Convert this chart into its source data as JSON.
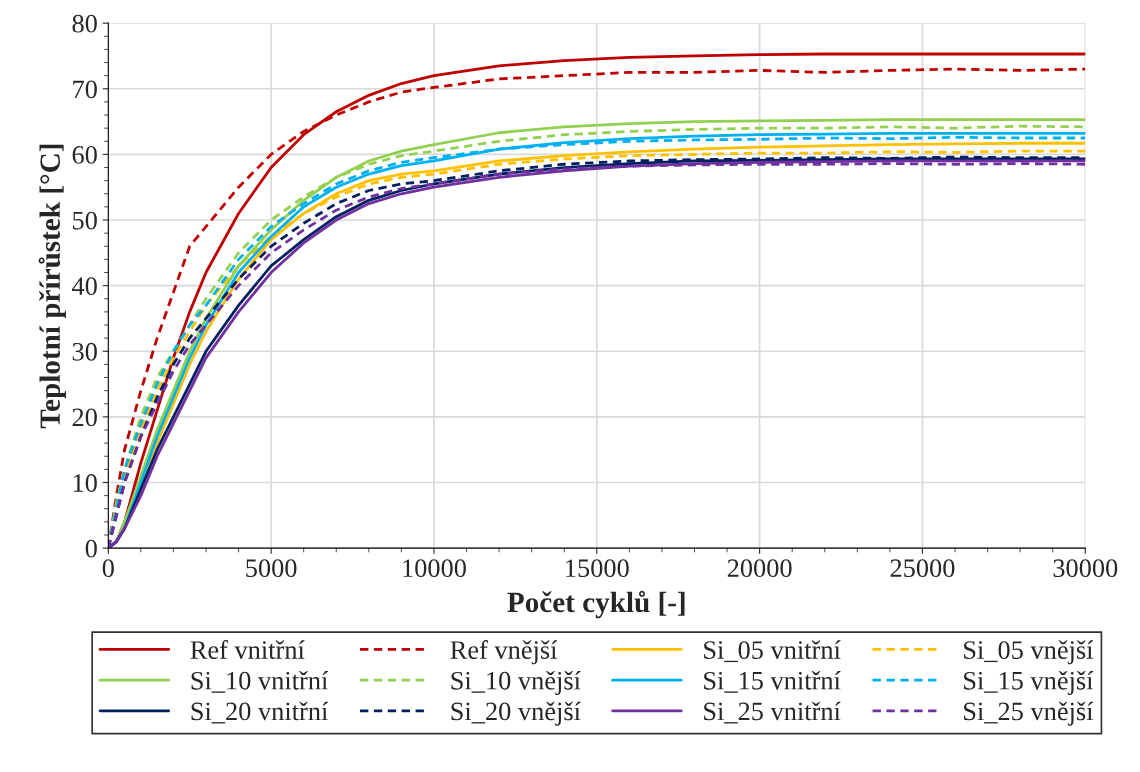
{
  "chart_data": {
    "type": "line",
    "xlabel": "Počet cyklů [-]",
    "ylabel": "Teplotní přírůstek [°C]",
    "x": [
      0,
      250,
      500,
      1000,
      1500,
      2000,
      2500,
      3000,
      4000,
      5000,
      6000,
      7000,
      8000,
      9000,
      10000,
      12000,
      14000,
      16000,
      18000,
      20000,
      22000,
      24000,
      26000,
      28000,
      30000
    ],
    "xlim": [
      0,
      30000
    ],
    "xticks": [
      0,
      5000,
      10000,
      15000,
      20000,
      25000,
      30000
    ],
    "ylim": [
      0,
      80
    ],
    "yticks": [
      0,
      10,
      20,
      30,
      40,
      50,
      60,
      70,
      80
    ],
    "grid": true,
    "legend": "bottom",
    "series": [
      {
        "name": "Ref vnitřní",
        "color": "#c00000",
        "line_style": "solid",
        "values": [
          0,
          1,
          4,
          13,
          21,
          29,
          36,
          42,
          51,
          58,
          63,
          66.5,
          69,
          70.8,
          72,
          73.5,
          74.3,
          74.8,
          75,
          75.2,
          75.3,
          75.3,
          75.3,
          75.3,
          75.3
        ]
      },
      {
        "name": "Ref vnější",
        "color": "#c00000",
        "line_style": "dashed",
        "values": [
          0,
          8,
          15,
          24,
          32,
          39,
          46,
          49,
          55,
          60,
          63.5,
          66,
          68,
          69.5,
          70.2,
          71.5,
          72,
          72.5,
          72.5,
          72.8,
          72.5,
          72.8,
          73,
          72.8,
          73
        ]
      },
      {
        "name": "Si_05 vnitřní",
        "color": "#ffc000",
        "line_style": "solid",
        "values": [
          null,
          null,
          3,
          9,
          16,
          22,
          28,
          33,
          41,
          47,
          51,
          54,
          56,
          57,
          57.5,
          59,
          59.8,
          60.4,
          60.8,
          61.1,
          61.3,
          61.5,
          61.6,
          61.7,
          61.7
        ]
      },
      {
        "name": "Si_05 vnější",
        "color": "#ffc000",
        "line_style": "dashed",
        "values": [
          0,
          6,
          11,
          18,
          24,
          29,
          33,
          37,
          43,
          47.5,
          51,
          53.5,
          55.5,
          56.5,
          57,
          58.5,
          59.3,
          59.8,
          60,
          60.2,
          60.2,
          60.4,
          60.3,
          60.5,
          60.5
        ]
      },
      {
        "name": "Si_10 vnitřní",
        "color": "#92d050",
        "line_style": "solid",
        "values": [
          0,
          1,
          4,
          11,
          18,
          24,
          30,
          35,
          43,
          48.5,
          53,
          56.5,
          59,
          60.5,
          61.5,
          63.3,
          64.2,
          64.7,
          65,
          65.1,
          65.2,
          65.3,
          65.3,
          65.3,
          65.3
        ]
      },
      {
        "name": "Si_10 vnější",
        "color": "#92d050",
        "line_style": "dashed",
        "values": [
          0,
          7,
          12,
          20,
          26,
          30,
          34,
          38,
          45,
          50,
          53.5,
          56.5,
          58.5,
          59.8,
          60.5,
          62,
          63,
          63.5,
          63.8,
          64,
          64,
          64.2,
          64,
          64.3,
          64.2
        ]
      },
      {
        "name": "Si_15 vnitřní",
        "color": "#00b0f0",
        "line_style": "solid",
        "values": [
          0,
          1,
          3,
          10,
          17,
          23,
          29,
          34,
          42,
          47.5,
          52,
          55,
          57,
          58.3,
          59,
          60.8,
          61.8,
          62.4,
          62.8,
          63,
          63.1,
          63.2,
          63.2,
          63.2,
          63.2
        ]
      },
      {
        "name": "Si_15 vnější",
        "color": "#00b0f0",
        "line_style": "dashed",
        "values": [
          0,
          6,
          12,
          19,
          25,
          30,
          34,
          37,
          44,
          49,
          52.5,
          55.5,
          57.5,
          58.8,
          59.5,
          60.8,
          61.5,
          62,
          62.2,
          62.3,
          62.5,
          62.4,
          62.6,
          62.5,
          62.5
        ]
      },
      {
        "name": "Si_20 vnitřní",
        "color": "#002060",
        "line_style": "solid",
        "values": [
          0,
          1,
          3,
          9,
          15,
          20,
          25,
          30,
          37,
          43,
          47,
          50.5,
          53,
          54.5,
          55.5,
          57,
          58,
          58.6,
          59,
          59.1,
          59.2,
          59.3,
          59.3,
          59.3,
          59.3
        ]
      },
      {
        "name": "Si_20 vnější",
        "color": "#002060",
        "line_style": "dashed",
        "values": [
          0,
          5,
          10,
          17,
          23,
          28,
          32,
          35,
          41,
          46,
          49.5,
          52.5,
          54.5,
          55.5,
          56,
          57.5,
          58.5,
          59,
          59.2,
          59.3,
          59.5,
          59.4,
          59.6,
          59.5,
          59.5
        ]
      },
      {
        "name": "Si_25 vnitřní",
        "color": "#7030a0",
        "line_style": "solid",
        "values": [
          0,
          1,
          3,
          8,
          14,
          19,
          24,
          29,
          36,
          42,
          46.5,
          50,
          52.5,
          54,
          55,
          56.5,
          57.5,
          58.2,
          58.6,
          58.8,
          58.9,
          59,
          59,
          59,
          59
        ]
      },
      {
        "name": "Si_25 vnější",
        "color": "#7030a0",
        "line_style": "dashed",
        "values": [
          0,
          5,
          10,
          17,
          22,
          27,
          31,
          34,
          40,
          45,
          48.5,
          51.5,
          53.5,
          54.8,
          55.5,
          57,
          57.8,
          58.2,
          58.4,
          58.5,
          58.5,
          58.6,
          58.5,
          58.6,
          58.5
        ]
      }
    ]
  }
}
